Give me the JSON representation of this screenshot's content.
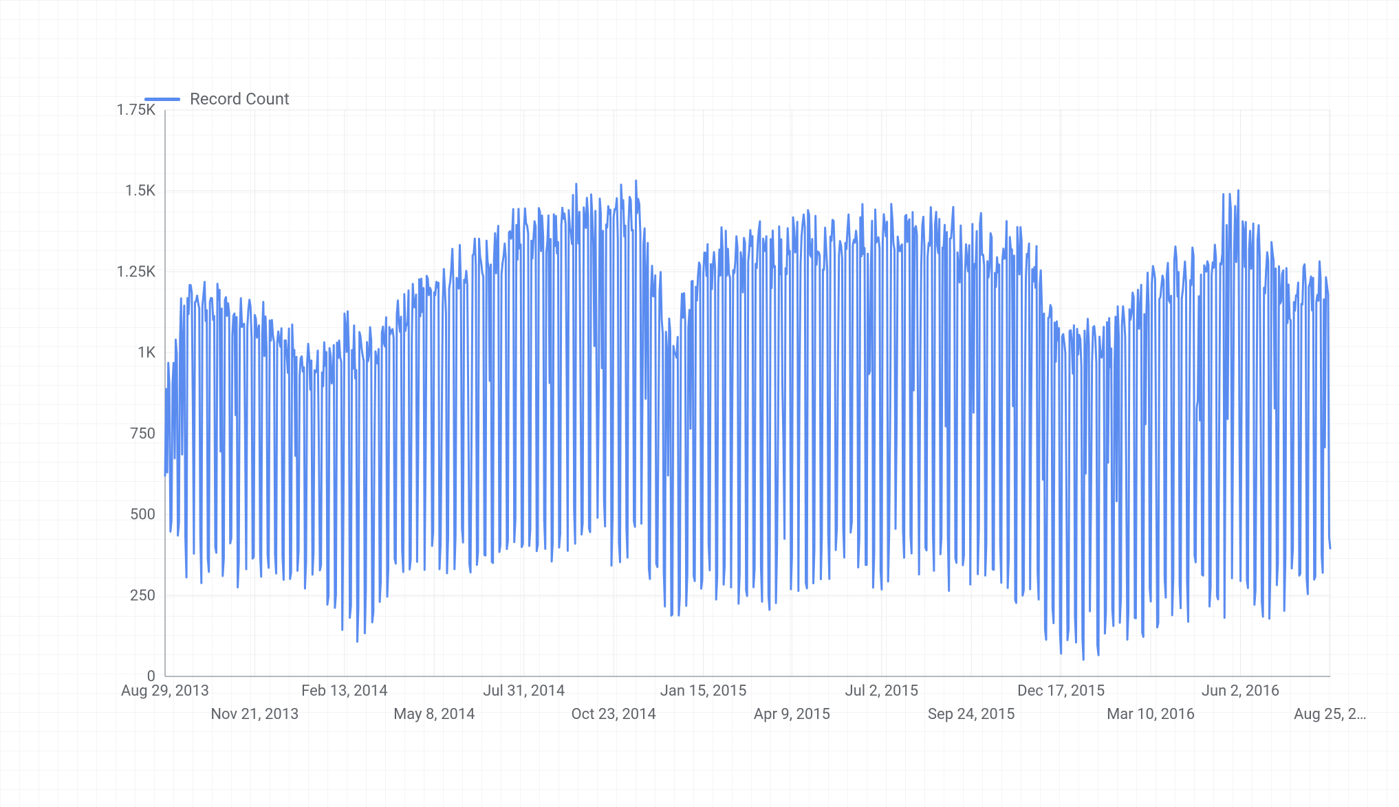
{
  "legend": {
    "label": "Record Count"
  },
  "chart": {
    "type": "line",
    "background_color": "#ffffff",
    "grid_color": "#e8eaed",
    "axis_color": "#9aa0a6",
    "text_color": "#5f6368",
    "series_color": "#5a8cf0",
    "line_width": 3,
    "label_fontsize": 22,
    "legend_fontsize": 24,
    "ylim": [
      0,
      1750
    ],
    "y_ticks": [
      {
        "value": 0,
        "label": "0"
      },
      {
        "value": 250,
        "label": "250"
      },
      {
        "value": 500,
        "label": "500"
      },
      {
        "value": 750,
        "label": "750"
      },
      {
        "value": 1000,
        "label": "1K"
      },
      {
        "value": 1250,
        "label": "1.25K"
      },
      {
        "value": 1500,
        "label": "1.5K"
      },
      {
        "value": 1750,
        "label": "1.75K"
      }
    ],
    "x_ticks": [
      {
        "position": 0.0,
        "label": "Aug 29, 2013",
        "row": 0
      },
      {
        "position": 0.077,
        "label": "Nov 21, 2013",
        "row": 1
      },
      {
        "position": 0.154,
        "label": "Feb 13, 2014",
        "row": 0
      },
      {
        "position": 0.231,
        "label": "May 8, 2014",
        "row": 1
      },
      {
        "position": 0.308,
        "label": "Jul 31, 2014",
        "row": 0
      },
      {
        "position": 0.385,
        "label": "Oct 23, 2014",
        "row": 1
      },
      {
        "position": 0.462,
        "label": "Jan 15, 2015",
        "row": 0
      },
      {
        "position": 0.538,
        "label": "Apr 9, 2015",
        "row": 1
      },
      {
        "position": 0.615,
        "label": "Jul 2, 2015",
        "row": 0
      },
      {
        "position": 0.692,
        "label": "Sep 24, 2015",
        "row": 1
      },
      {
        "position": 0.769,
        "label": "Dec 17, 2015",
        "row": 0
      },
      {
        "position": 0.846,
        "label": "Mar 10, 2016",
        "row": 1
      },
      {
        "position": 0.923,
        "label": "Jun 2, 2016",
        "row": 0
      },
      {
        "position": 1.0,
        "label": "Aug 25, 2…",
        "row": 1
      }
    ],
    "series_pattern": {
      "weeks": 156,
      "weekday_high_base": 1050,
      "weekday_high_variation": 150,
      "weekend_low_base": 350,
      "weekend_low_variation": 200,
      "start_value": 620,
      "envelope": [
        {
          "week": 0,
          "high": 900,
          "low": 450
        },
        {
          "week": 3,
          "high": 1260,
          "low": 300
        },
        {
          "week": 10,
          "high": 1200,
          "low": 280
        },
        {
          "week": 20,
          "high": 1000,
          "low": 280
        },
        {
          "week": 24,
          "high": 1100,
          "low": 90
        },
        {
          "week": 30,
          "high": 1100,
          "low": 200
        },
        {
          "week": 35,
          "high": 1270,
          "low": 300
        },
        {
          "week": 45,
          "high": 1400,
          "low": 350
        },
        {
          "week": 55,
          "high": 1520,
          "low": 350
        },
        {
          "week": 63,
          "high": 1500,
          "low": 350
        },
        {
          "week": 68,
          "high": 1100,
          "low": 130
        },
        {
          "week": 72,
          "high": 1370,
          "low": 250
        },
        {
          "week": 80,
          "high": 1400,
          "low": 200
        },
        {
          "week": 90,
          "high": 1420,
          "low": 300
        },
        {
          "week": 100,
          "high": 1460,
          "low": 260
        },
        {
          "week": 110,
          "high": 1400,
          "low": 300
        },
        {
          "week": 115,
          "high": 1400,
          "low": 180
        },
        {
          "week": 120,
          "high": 1100,
          "low": 60
        },
        {
          "week": 126,
          "high": 1120,
          "low": 60
        },
        {
          "week": 130,
          "high": 1260,
          "low": 100
        },
        {
          "week": 138,
          "high": 1350,
          "low": 200
        },
        {
          "week": 143,
          "high": 1500,
          "low": 150
        },
        {
          "week": 150,
          "high": 1280,
          "low": 200
        },
        {
          "week": 155,
          "high": 1270,
          "low": 290
        }
      ]
    }
  }
}
